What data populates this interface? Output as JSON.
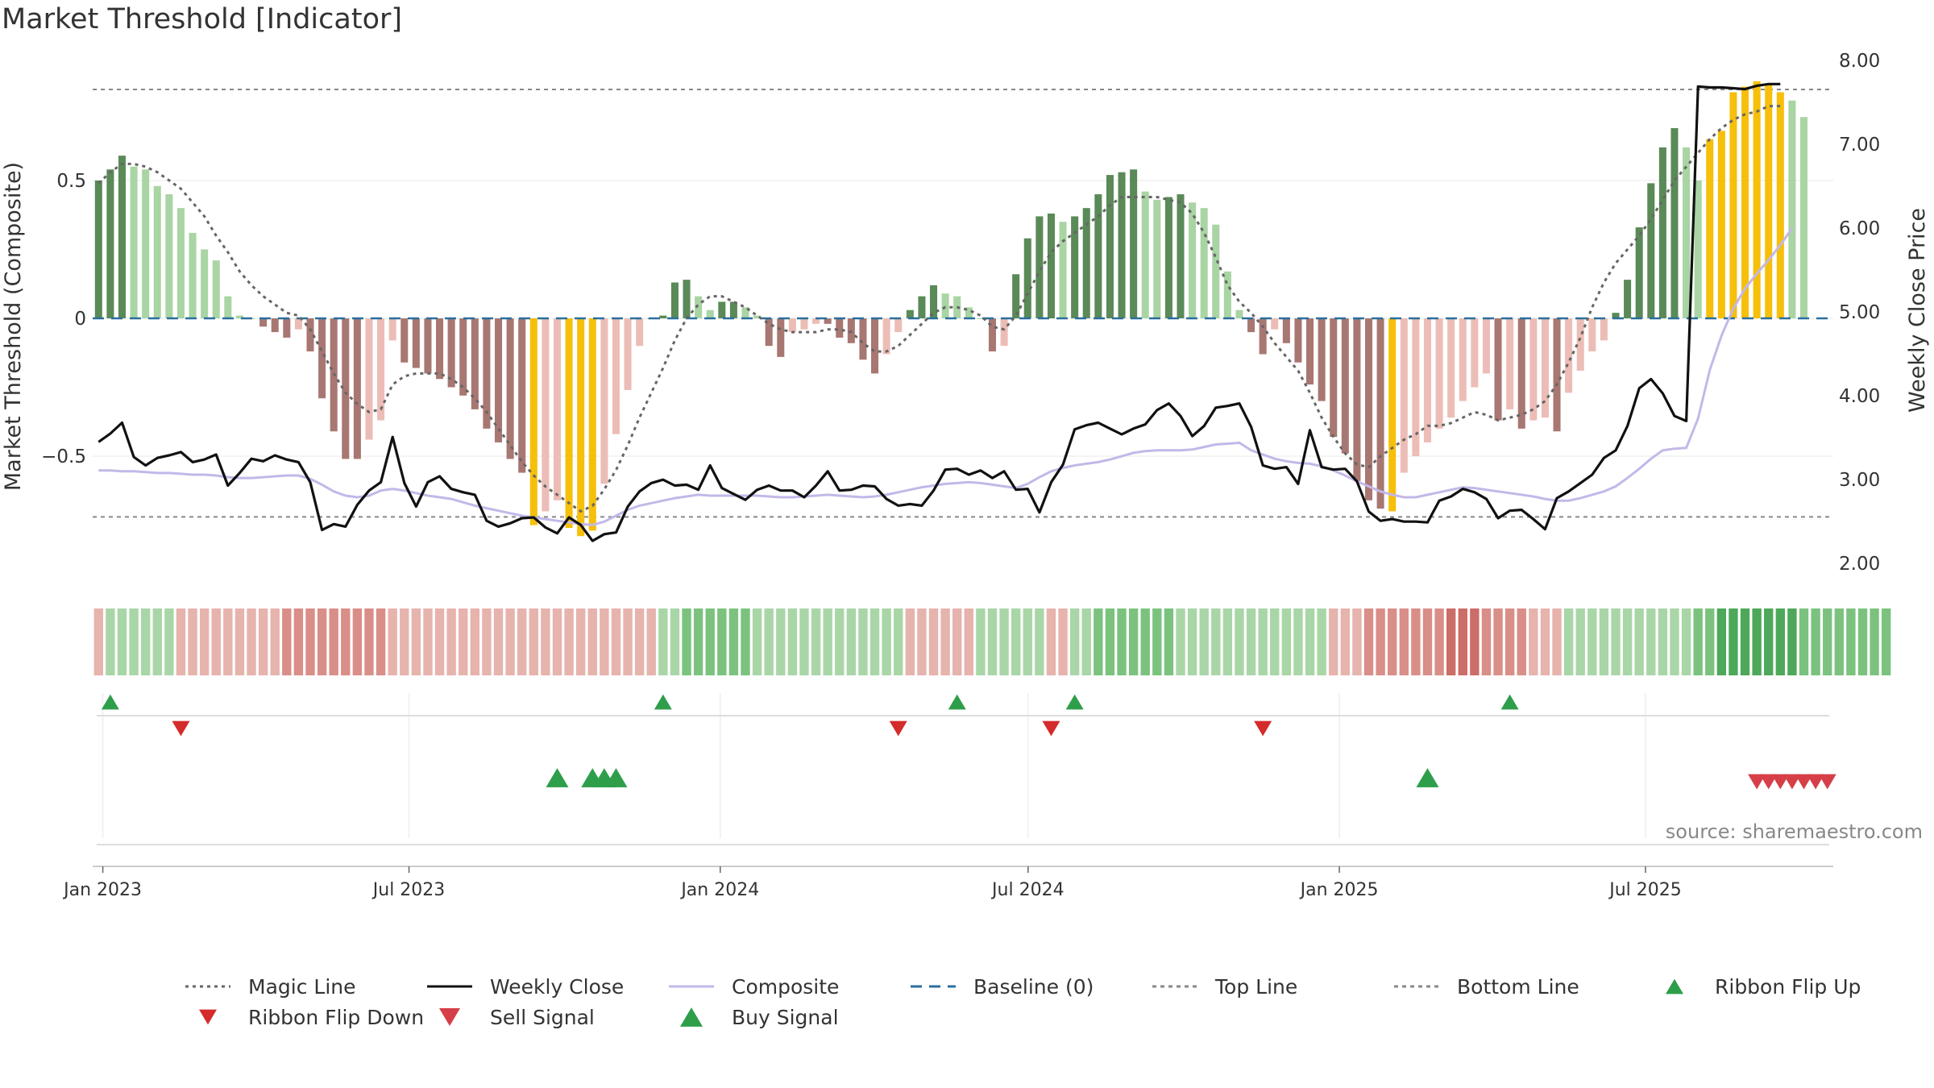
{
  "title": "Market Threshold [Indicator]",
  "source": "source: sharemaestro.com",
  "colors": {
    "magic_line": "#666666",
    "weekly_close": "#111111",
    "composite": "#c3b8e8",
    "baseline": "#2a6f9e",
    "threshold_line": "#888888",
    "green_dark": "#5a8a57",
    "green_light": "#a8d5a3",
    "red_dark": "#a87772",
    "red_light": "#ecbdb6",
    "extreme": "#f6bf0a",
    "buy": "#2e9e4a",
    "sell": "#d63f47",
    "flip_down": "#d42b2b"
  },
  "chart_data": {
    "type": "line",
    "title": "Market Threshold [Indicator]",
    "ylabel": "Market Threshold (Composite)",
    "ylabel_right": "Weekly Close Price",
    "ylim": [
      -0.95,
      0.95
    ],
    "ylim_right": [
      1.8,
      8.05
    ],
    "yticks": [
      0.5,
      0,
      -0.5
    ],
    "yticks_right": [
      2.0,
      3.0,
      4.0,
      5.0,
      6.0,
      7.0,
      8.0
    ],
    "ytick_labels": [
      "0.5",
      "0",
      "−0.5"
    ],
    "ytick_labels_right": [
      "2.00",
      "3.00",
      "4.00",
      "5.00",
      "6.00",
      "7.00",
      "8.00"
    ],
    "x_tick_labels": [
      "Jan 2023",
      "Jul 2023",
      "Jan 2024",
      "Jul 2024",
      "Jan 2025",
      "Jul 2025"
    ],
    "x_range": [
      "2022-12-26",
      "2025-10-20"
    ],
    "top_line": 0.83,
    "bottom_line": -0.72,
    "baseline": 0,
    "weeks": {
      "start": "2022-12-26",
      "count": 148,
      "composite_bars": [
        0.5,
        0.54,
        0.59,
        0.55,
        0.54,
        0.48,
        0.45,
        0.4,
        0.31,
        0.25,
        0.21,
        0.08,
        0.01,
        0,
        -0.03,
        -0.05,
        -0.07,
        -0.04,
        -0.12,
        -0.29,
        -0.41,
        -0.51,
        -0.51,
        -0.44,
        -0.37,
        -0.08,
        -0.16,
        -0.18,
        -0.2,
        -0.22,
        -0.25,
        -0.28,
        -0.33,
        -0.4,
        -0.45,
        -0.51,
        -0.56,
        -0.75,
        -0.7,
        -0.66,
        -0.76,
        -0.79,
        -0.77,
        -0.6,
        -0.42,
        -0.26,
        -0.1,
        0,
        0.01,
        0.13,
        0.14,
        0.08,
        0.03,
        0.06,
        0.06,
        0.04,
        0.01,
        -0.1,
        -0.14,
        -0.05,
        -0.04,
        -0.02,
        -0.02,
        -0.07,
        -0.09,
        -0.15,
        -0.2,
        -0.13,
        -0.05,
        0.03,
        0.08,
        0.12,
        0.09,
        0.08,
        0.04,
        0,
        -0.12,
        -0.1,
        0.16,
        0.29,
        0.37,
        0.38,
        0.35,
        0.37,
        0.4,
        0.45,
        0.52,
        0.53,
        0.54,
        0.46,
        0.43,
        0.44,
        0.45,
        0.42,
        0.4,
        0.34,
        0.17,
        0.03,
        -0.05,
        -0.13,
        -0.04,
        -0.09,
        -0.16,
        -0.24,
        -0.3,
        -0.43,
        -0.49,
        -0.59,
        -0.66,
        -0.69,
        -0.7,
        -0.56,
        -0.5,
        -0.45,
        -0.4,
        -0.36,
        -0.3,
        -0.25,
        -0.2,
        -0.37,
        -0.33,
        -0.4,
        -0.37,
        -0.36,
        -0.41,
        -0.27,
        -0.19,
        -0.12,
        -0.08,
        0.02,
        0.14,
        0.33,
        0.49,
        0.62,
        0.69,
        0.62,
        0.5,
        0.65,
        0.68,
        0.82,
        0.84,
        0.86,
        0.85,
        0.82,
        0.79,
        0.73
      ],
      "bar_extreme": [
        0,
        0,
        0,
        0,
        0,
        0,
        0,
        0,
        0,
        0,
        0,
        0,
        0,
        0,
        0,
        0,
        0,
        0,
        0,
        0,
        0,
        0,
        0,
        0,
        0,
        0,
        0,
        0,
        0,
        0,
        0,
        0,
        0,
        0,
        0,
        0,
        0,
        1,
        0,
        0,
        1,
        1,
        1,
        0,
        0,
        0,
        0,
        0,
        0,
        0,
        0,
        0,
        0,
        0,
        0,
        0,
        0,
        0,
        0,
        0,
        0,
        0,
        0,
        0,
        0,
        0,
        0,
        0,
        0,
        0,
        0,
        0,
        0,
        0,
        0,
        0,
        0,
        0,
        0,
        0,
        0,
        0,
        0,
        0,
        0,
        0,
        0,
        0,
        0,
        0,
        0,
        0,
        0,
        0,
        0,
        0,
        0,
        0,
        0,
        0,
        0,
        0,
        0,
        0,
        0,
        0,
        0,
        0,
        0,
        0,
        1,
        0,
        0,
        0,
        0,
        0,
        0,
        0,
        0,
        0,
        0,
        0,
        0,
        0,
        0,
        0,
        0,
        0,
        0,
        0,
        0,
        0,
        0,
        0,
        0,
        0,
        0,
        1,
        1,
        1,
        1,
        1,
        1,
        1
      ],
      "magic_line": [
        0.49,
        0.53,
        0.56,
        0.56,
        0.55,
        0.53,
        0.5,
        0.47,
        0.42,
        0.37,
        0.3,
        0.24,
        0.17,
        0.12,
        0.08,
        0.05,
        0.02,
        0.01,
        -0.04,
        -0.12,
        -0.2,
        -0.27,
        -0.31,
        -0.34,
        -0.33,
        -0.24,
        -0.21,
        -0.2,
        -0.2,
        -0.2,
        -0.22,
        -0.25,
        -0.29,
        -0.34,
        -0.4,
        -0.46,
        -0.52,
        -0.57,
        -0.61,
        -0.64,
        -0.67,
        -0.7,
        -0.68,
        -0.62,
        -0.55,
        -0.46,
        -0.36,
        -0.27,
        -0.18,
        -0.08,
        0,
        0.05,
        0.08,
        0.08,
        0.06,
        0.04,
        0.01,
        -0.02,
        -0.04,
        -0.05,
        -0.05,
        -0.05,
        -0.04,
        -0.04,
        -0.05,
        -0.09,
        -0.12,
        -0.12,
        -0.1,
        -0.06,
        -0.02,
        0.02,
        0.04,
        0.04,
        0.03,
        0.01,
        -0.03,
        -0.04,
        0.01,
        0.09,
        0.17,
        0.24,
        0.28,
        0.31,
        0.34,
        0.37,
        0.41,
        0.44,
        0.44,
        0.44,
        0.44,
        0.43,
        0.42,
        0.38,
        0.31,
        0.22,
        0.12,
        0.06,
        0.02,
        -0.03,
        -0.09,
        -0.14,
        -0.19,
        -0.27,
        -0.36,
        -0.43,
        -0.49,
        -0.53,
        -0.54,
        -0.5,
        -0.47,
        -0.44,
        -0.42,
        -0.39,
        -0.39,
        -0.38,
        -0.36,
        -0.34,
        -0.35,
        -0.37,
        -0.36,
        -0.35,
        -0.33,
        -0.3,
        -0.24,
        -0.16,
        -0.07,
        0.04,
        0.13,
        0.2,
        0.25,
        0.3,
        0.36,
        0.43,
        0.5,
        0.55,
        0.6,
        0.65,
        0.69,
        0.72,
        0.74,
        0.75,
        0.77,
        0.77
      ],
      "weekly_close": [
        3.45,
        3.55,
        3.68,
        3.27,
        3.17,
        3.26,
        3.29,
        3.33,
        3.21,
        3.24,
        3.3,
        2.93,
        3.08,
        3.25,
        3.22,
        3.29,
        3.24,
        3.21,
        2.97,
        2.4,
        2.47,
        2.44,
        2.7,
        2.87,
        2.97,
        3.51,
        2.96,
        2.68,
        2.97,
        3.04,
        2.89,
        2.85,
        2.82,
        2.51,
        2.44,
        2.48,
        2.54,
        2.55,
        2.43,
        2.36,
        2.55,
        2.46,
        2.27,
        2.35,
        2.37,
        2.68,
        2.86,
        2.96,
        3.0,
        2.93,
        2.94,
        2.88,
        3.17,
        2.9,
        2.83,
        2.76,
        2.88,
        2.93,
        2.87,
        2.87,
        2.79,
        2.93,
        3.1,
        2.87,
        2.88,
        2.93,
        2.92,
        2.77,
        2.69,
        2.71,
        2.69,
        2.87,
        3.12,
        3.13,
        3.06,
        3.11,
        3.02,
        3.1,
        2.88,
        2.89,
        2.61,
        2.97,
        3.18,
        3.6,
        3.65,
        3.68,
        3.61,
        3.54,
        3.61,
        3.66,
        3.83,
        3.91,
        3.76,
        3.52,
        3.64,
        3.86,
        3.88,
        3.91,
        3.63,
        3.17,
        3.13,
        3.15,
        2.95,
        3.59,
        3.15,
        3.12,
        3.13,
        2.98,
        2.62,
        2.51,
        2.53,
        2.5,
        2.5,
        2.49,
        2.75,
        2.8,
        2.89,
        2.85,
        2.77,
        2.54,
        2.63,
        2.64,
        2.53,
        2.41,
        2.78,
        2.86,
        2.96,
        3.06,
        3.26,
        3.35,
        3.64,
        4.09,
        4.2,
        4.03,
        3.76,
        3.7,
        7.69,
        7.68,
        7.68,
        7.67,
        7.66,
        7.7,
        7.72,
        7.72
      ],
      "composite_line": [
        3.11,
        3.11,
        3.1,
        3.1,
        3.09,
        3.08,
        3.08,
        3.07,
        3.06,
        3.06,
        3.05,
        3.03,
        3.02,
        3.02,
        3.03,
        3.04,
        3.05,
        3.05,
        3.01,
        2.94,
        2.86,
        2.81,
        2.79,
        2.81,
        2.87,
        2.89,
        2.87,
        2.84,
        2.81,
        2.79,
        2.77,
        2.73,
        2.69,
        2.66,
        2.63,
        2.6,
        2.57,
        2.55,
        2.53,
        2.51,
        2.49,
        2.47,
        2.46,
        2.5,
        2.57,
        2.64,
        2.69,
        2.72,
        2.75,
        2.78,
        2.8,
        2.82,
        2.81,
        2.81,
        2.81,
        2.81,
        2.81,
        2.8,
        2.79,
        2.79,
        2.8,
        2.81,
        2.82,
        2.81,
        2.8,
        2.79,
        2.8,
        2.82,
        2.85,
        2.88,
        2.91,
        2.93,
        2.95,
        2.96,
        2.97,
        2.96,
        2.94,
        2.92,
        2.9,
        2.95,
        3.03,
        3.1,
        3.14,
        3.17,
        3.19,
        3.21,
        3.24,
        3.28,
        3.32,
        3.34,
        3.35,
        3.35,
        3.35,
        3.36,
        3.39,
        3.42,
        3.43,
        3.44,
        3.35,
        3.3,
        3.25,
        3.22,
        3.2,
        3.19,
        3.16,
        3.11,
        3.05,
        2.98,
        2.92,
        2.86,
        2.82,
        2.79,
        2.79,
        2.82,
        2.85,
        2.88,
        2.91,
        2.9,
        2.88,
        2.86,
        2.84,
        2.82,
        2.8,
        2.77,
        2.75,
        2.75,
        2.78,
        2.82,
        2.86,
        2.92,
        3.02,
        3.13,
        3.25,
        3.35,
        3.37,
        3.38,
        3.73,
        4.31,
        4.72,
        5.04,
        5.28,
        5.46,
        5.62,
        5.8,
        6.0
      ]
    },
    "ribbon": {
      "note": "ribbon color level per week, -3..+3",
      "levels": [
        -1,
        1,
        1,
        1,
        1,
        1,
        1,
        -1,
        -1,
        -1,
        -1,
        -1,
        -1,
        -1,
        -1,
        -1,
        -2,
        -2,
        -2,
        -2,
        -2,
        -2,
        -2,
        -2,
        -2,
        -1,
        -1,
        -1,
        -1,
        -1,
        -1,
        -1,
        -1,
        -1,
        -1,
        -1,
        -1,
        -1,
        -1,
        -1,
        -1,
        -1,
        -1,
        -1,
        -1,
        -1,
        -1,
        -1,
        1,
        1,
        2,
        2,
        2,
        2,
        2,
        2,
        1,
        1,
        1,
        1,
        1,
        1,
        1,
        1,
        1,
        1,
        1,
        1,
        1,
        -1,
        -1,
        -1,
        -1,
        -1,
        -1,
        1,
        1,
        1,
        1,
        1,
        1,
        -1,
        -1,
        1,
        1,
        2,
        2,
        2,
        2,
        2,
        2,
        2,
        1,
        1,
        1,
        1,
        1,
        1,
        1,
        1,
        1,
        1,
        1,
        1,
        1,
        -1,
        -1,
        -1,
        -2,
        -2,
        -2,
        -2,
        -2,
        -2,
        -2,
        -3,
        -3,
        -3,
        -2,
        -2,
        -2,
        -2,
        -1,
        -1,
        -1,
        1,
        1,
        1,
        1,
        1,
        1,
        1,
        1,
        1,
        1,
        1,
        2,
        2,
        3,
        3,
        3,
        3,
        3,
        3,
        3,
        2,
        2,
        2,
        2,
        2,
        2,
        2,
        2
      ]
    },
    "ribbon_flip_up_weeks": [
      1,
      48,
      73,
      83,
      120
    ],
    "ribbon_flip_down_weeks": [
      7,
      68,
      81,
      99
    ],
    "buy_signal_weeks": [
      39,
      42,
      43,
      44,
      113
    ],
    "sell_signal_weeks": [
      141,
      142,
      143,
      144,
      145,
      146,
      147
    ],
    "series": [
      {
        "name": "Magic Line",
        "style": "dotted"
      },
      {
        "name": "Weekly Close",
        "style": "solid"
      },
      {
        "name": "Composite",
        "style": "solid"
      },
      {
        "name": "Baseline (0)",
        "style": "dashed"
      },
      {
        "name": "Top Line",
        "style": "dotted"
      },
      {
        "name": "Bottom Line",
        "style": "dotted"
      },
      {
        "name": "Ribbon Flip Up",
        "style": "marker-up"
      },
      {
        "name": "Ribbon Flip Down",
        "style": "marker-down"
      },
      {
        "name": "Sell Signal",
        "style": "marker-down"
      },
      {
        "name": "Buy Signal",
        "style": "marker-up"
      }
    ]
  }
}
